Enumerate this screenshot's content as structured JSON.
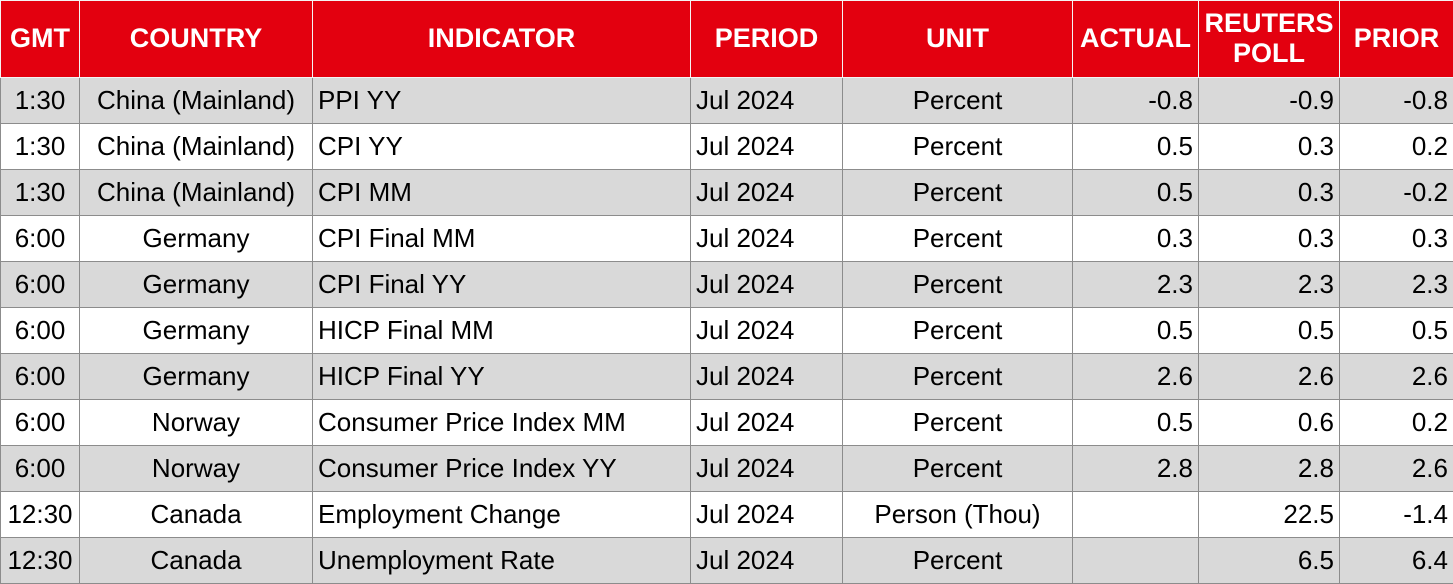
{
  "headers": {
    "gmt": "GMT",
    "country": "COUNTRY",
    "indicator": "INDICATOR",
    "period": "PERIOD",
    "unit": "UNIT",
    "actual": "ACTUAL",
    "poll": "REUTERS\nPOLL",
    "prior": "PRIOR"
  },
  "colors": {
    "header_bg": "#e3000f",
    "header_text": "#ffffff",
    "alt_row": "#d9d9d9"
  },
  "rows": [
    {
      "gmt": "1:30",
      "country": "China (Mainland)",
      "indicator": "PPI YY",
      "period": "Jul 2024",
      "unit": "Percent",
      "actual": "-0.8",
      "poll": "-0.9",
      "prior": "-0.8"
    },
    {
      "gmt": "1:30",
      "country": "China (Mainland)",
      "indicator": "CPI YY",
      "period": "Jul 2024",
      "unit": "Percent",
      "actual": "0.5",
      "poll": "0.3",
      "prior": "0.2"
    },
    {
      "gmt": "1:30",
      "country": "China (Mainland)",
      "indicator": "CPI MM",
      "period": "Jul 2024",
      "unit": "Percent",
      "actual": "0.5",
      "poll": "0.3",
      "prior": "-0.2"
    },
    {
      "gmt": "6:00",
      "country": "Germany",
      "indicator": "CPI Final MM",
      "period": "Jul 2024",
      "unit": "Percent",
      "actual": "0.3",
      "poll": "0.3",
      "prior": "0.3"
    },
    {
      "gmt": "6:00",
      "country": "Germany",
      "indicator": "CPI Final YY",
      "period": "Jul 2024",
      "unit": "Percent",
      "actual": "2.3",
      "poll": "2.3",
      "prior": "2.3"
    },
    {
      "gmt": "6:00",
      "country": "Germany",
      "indicator": "HICP Final MM",
      "period": "Jul 2024",
      "unit": "Percent",
      "actual": "0.5",
      "poll": "0.5",
      "prior": "0.5"
    },
    {
      "gmt": "6:00",
      "country": "Germany",
      "indicator": "HICP Final YY",
      "period": "Jul 2024",
      "unit": "Percent",
      "actual": "2.6",
      "poll": "2.6",
      "prior": "2.6"
    },
    {
      "gmt": "6:00",
      "country": "Norway",
      "indicator": "Consumer Price Index MM",
      "period": "Jul 2024",
      "unit": "Percent",
      "actual": "0.5",
      "poll": "0.6",
      "prior": "0.2"
    },
    {
      "gmt": "6:00",
      "country": "Norway",
      "indicator": "Consumer Price Index YY",
      "period": "Jul 2024",
      "unit": "Percent",
      "actual": "2.8",
      "poll": "2.8",
      "prior": "2.6"
    },
    {
      "gmt": "12:30",
      "country": "Canada",
      "indicator": "Employment Change",
      "period": "Jul 2024",
      "unit": "Person (Thou)",
      "actual": "",
      "poll": "22.5",
      "prior": "-1.4"
    },
    {
      "gmt": "12:30",
      "country": "Canada",
      "indicator": "Unemployment Rate",
      "period": "Jul 2024",
      "unit": "Percent",
      "actual": "",
      "poll": "6.5",
      "prior": "6.4"
    }
  ]
}
